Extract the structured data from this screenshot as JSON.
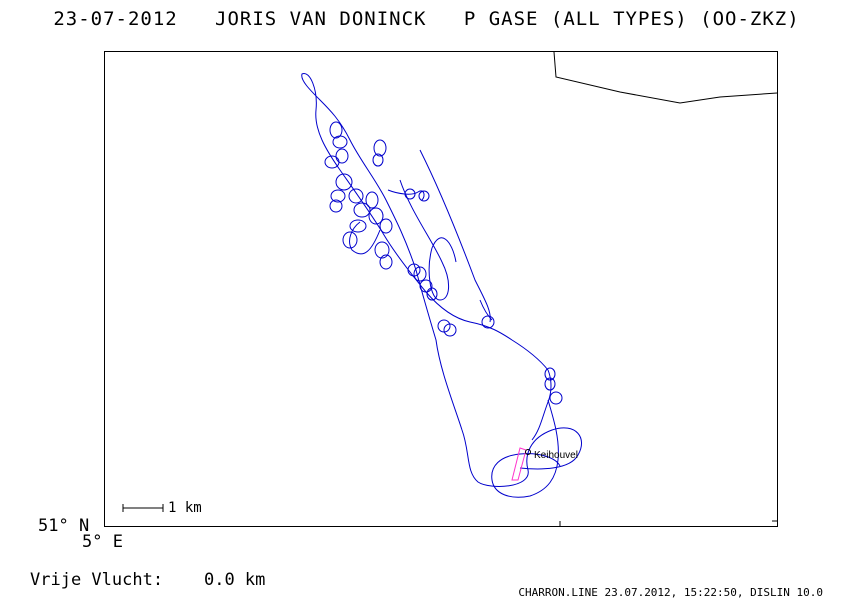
{
  "header": {
    "title": "23-07-2012   JORIS VAN DONINCK   P GASE (ALL TYPES) (OO-ZKZ)"
  },
  "map": {
    "lat_label": "51° N",
    "lon_label": "5° E",
    "scale_label": "1 km",
    "place_label": "Keihouvel",
    "track_color": "#0000cc",
    "task_color": "#ff33cc",
    "border_color": "#000000"
  },
  "stats": {
    "free_flight": "Vrije Vlucht:    0.0 km"
  },
  "footer": {
    "text": "CHARRON.LINE 23.07.2012, 15:22:50, DISLIN 10.0"
  }
}
